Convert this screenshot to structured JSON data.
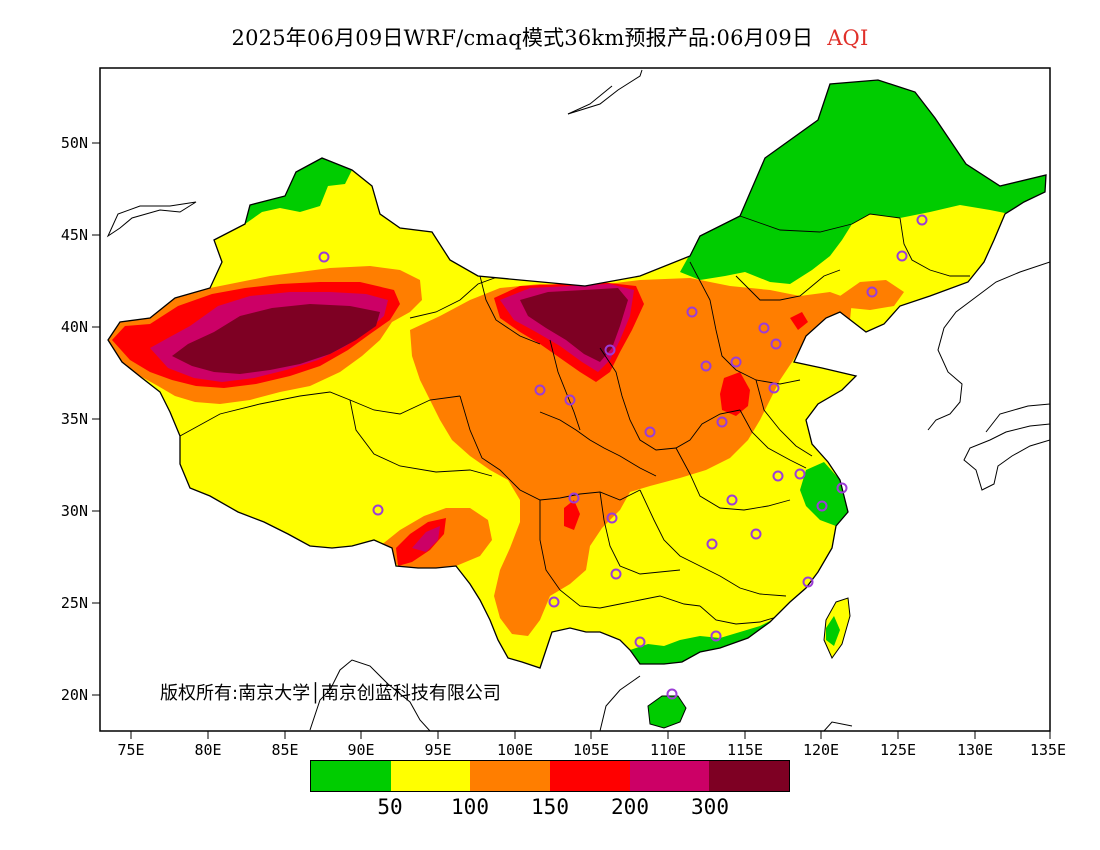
{
  "title": {
    "main": "2025年06月09日WRF/cmaq模式36km预报产品:06月09日",
    "variable": "AQI"
  },
  "axes": {
    "lat_labels": [
      "50N",
      "45N",
      "40N",
      "35N",
      "30N",
      "25N",
      "20N"
    ],
    "lon_labels": [
      "75E",
      "80E",
      "85E",
      "90E",
      "95E",
      "100E",
      "105E",
      "110E",
      "115E",
      "120E",
      "125E",
      "130E",
      "135E"
    ]
  },
  "legend": {
    "colors": [
      "#00cc00",
      "#ffff00",
      "#ff7e00",
      "#ff0000",
      "#cc0066",
      "#7e0023"
    ],
    "labels": [
      "50",
      "100",
      "150",
      "200",
      "300"
    ]
  },
  "copyright": "版权所有:南京大学│南京创蓝科技有限公司",
  "colors": {
    "good": "#00cc00",
    "moderate": "#ffff00",
    "sensitive": "#ff7e00",
    "unhealthy": "#ff0000",
    "very_unhealthy": "#cc0066",
    "hazardous": "#7e0023",
    "station_marker": "#9b3dd6"
  }
}
